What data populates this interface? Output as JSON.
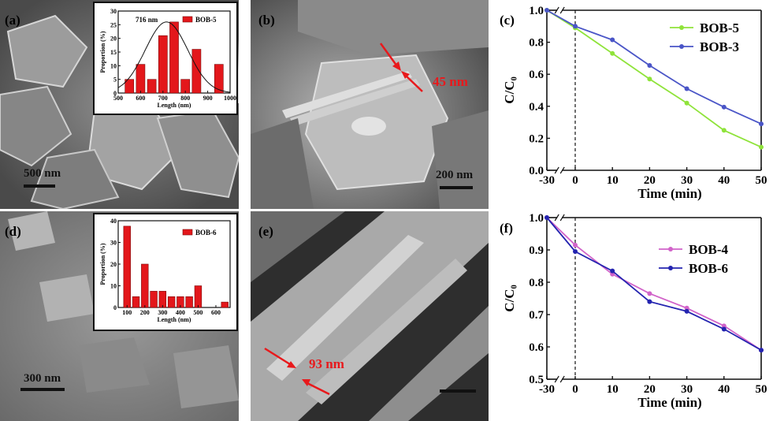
{
  "panels": {
    "a": {
      "label": "(a)",
      "scale": "500 nm"
    },
    "b": {
      "label": "(b)",
      "scale": "200 nm",
      "thickness": "45 nm"
    },
    "d": {
      "label": "(d)",
      "scale": "300 nm"
    },
    "e": {
      "label": "(e)",
      "thickness": "93 nm"
    },
    "c": {
      "label": "(c)"
    },
    "f": {
      "label": "(f)"
    }
  },
  "chart_data": [
    {
      "id": "a-inset",
      "type": "bar",
      "legend": "BOB-5",
      "annotation": "716 nm",
      "xlabel": "Length (nm)",
      "ylabel": "Proportion (%)",
      "xlim": [
        500,
        1000
      ],
      "ylim": [
        0,
        30
      ],
      "xticks": [
        500,
        600,
        700,
        800,
        900,
        1000
      ],
      "yticks": [
        0,
        5,
        10,
        15,
        20,
        25,
        30
      ],
      "x": [
        550,
        600,
        650,
        700,
        750,
        800,
        850,
        950
      ],
      "values": [
        5,
        10.5,
        5,
        21,
        26,
        5,
        16,
        10.5
      ],
      "fit_curve": {
        "type": "gaussian",
        "center": 716,
        "peak": 26,
        "sigma": 95
      }
    },
    {
      "id": "d-inset",
      "type": "bar",
      "legend": "BOB-6",
      "xlabel": "Length (nm)",
      "ylabel": "Proportion (%)",
      "xlim": [
        50,
        680
      ],
      "ylim": [
        0,
        40
      ],
      "xticks": [
        100,
        200,
        300,
        400,
        500,
        600
      ],
      "yticks": [
        0,
        10,
        20,
        30,
        40
      ],
      "x": [
        100,
        150,
        200,
        250,
        300,
        350,
        400,
        450,
        500,
        550,
        650
      ],
      "values": [
        37.5,
        5,
        20,
        7.5,
        7.5,
        5,
        5,
        5,
        10,
        0,
        2.5
      ]
    },
    {
      "id": "c",
      "type": "line",
      "xlabel": "Time (min)",
      "ylabel": "C/C₀",
      "xlim": [
        -30,
        50
      ],
      "ylim": [
        0,
        1.0
      ],
      "xticks": [
        -30,
        0,
        10,
        20,
        30,
        40,
        50
      ],
      "yticks": [
        0.0,
        0.2,
        0.4,
        0.6,
        0.8,
        1.0
      ],
      "x": [
        -30,
        0,
        10,
        20,
        30,
        40,
        50
      ],
      "legend_position": "top-right",
      "series": [
        {
          "name": "BOB-5",
          "color": "#8fe33a",
          "values": [
            1.0,
            0.89,
            0.73,
            0.57,
            0.42,
            0.25,
            0.145
          ]
        },
        {
          "name": "BOB-3",
          "color": "#4a55c7",
          "values": [
            1.0,
            0.9,
            0.815,
            0.655,
            0.51,
            0.395,
            0.29
          ]
        }
      ]
    },
    {
      "id": "f",
      "type": "line",
      "xlabel": "Time (min)",
      "ylabel": "C/C₀",
      "xlim": [
        -30,
        50
      ],
      "ylim": [
        0.5,
        1.0
      ],
      "xticks": [
        -30,
        0,
        10,
        20,
        30,
        40,
        50
      ],
      "yticks": [
        0.5,
        0.6,
        0.7,
        0.8,
        0.9,
        1.0
      ],
      "x": [
        -30,
        0,
        10,
        20,
        30,
        40,
        50
      ],
      "legend_position": "top-right",
      "series": [
        {
          "name": "BOB-4",
          "color": "#d163c9",
          "values": [
            1.0,
            0.915,
            0.825,
            0.765,
            0.72,
            0.665,
            0.59
          ]
        },
        {
          "name": "BOB-6",
          "color": "#2424b0",
          "values": [
            1.0,
            0.895,
            0.835,
            0.74,
            0.71,
            0.655,
            0.59
          ]
        }
      ]
    }
  ]
}
